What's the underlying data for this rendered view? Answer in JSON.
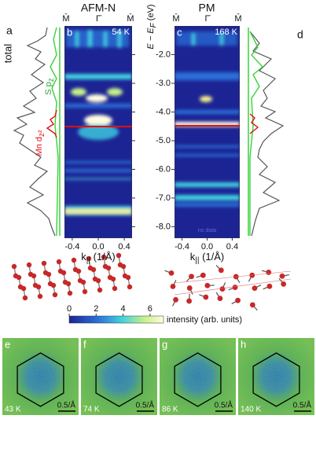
{
  "header": {
    "left_title": "AFM-N",
    "right_title": "PM"
  },
  "arpes": {
    "y_label": {
      "main": "E − E",
      "sub": "F",
      "unit": " (eV)"
    },
    "ylim": [
      -8.4,
      -1.0
    ],
    "yticks": [
      {
        "value": -2,
        "label": "-2.0"
      },
      {
        "value": -3,
        "label": "-3.0"
      },
      {
        "value": -4,
        "label": "-4.0"
      },
      {
        "value": -5,
        "label": "-5.0"
      },
      {
        "value": -6,
        "label": "-6.0"
      },
      {
        "value": -7,
        "label": "-7.0"
      },
      {
        "value": -8,
        "label": "-8.0"
      }
    ],
    "xlim": [
      -0.52,
      0.52
    ],
    "xticks": [
      -0.4,
      {
        "value": 0,
        "label": "0.0"
      },
      0.4
    ],
    "x_label": {
      "main": "k",
      "sub": "||",
      "unit": " (1/Å)"
    },
    "panels": [
      {
        "label": "b",
        "temperature": "54 K",
        "symmetry": [
          "M̄",
          "Γ̄",
          "M̄"
        ]
      },
      {
        "label": "c",
        "temperature": "168 K",
        "symmetry": [
          "M̄",
          "Γ̄",
          "M̄"
        ],
        "note": "no data"
      }
    ]
  },
  "dos": {
    "a": {
      "label": "a",
      "total": "total",
      "s": {
        "main": "S p",
        "sub": "z"
      },
      "mn": {
        "main": "Mn d",
        "sub": "z²"
      }
    },
    "d": {
      "label": "d"
    }
  },
  "colorbar": {
    "clim": [
      0,
      7
    ],
    "ticks": [
      0,
      2,
      4,
      6
    ],
    "label": "intensity (arb. units)"
  },
  "maps": [
    {
      "label": "e",
      "temperature": "43 K",
      "scale": "0.5/Å"
    },
    {
      "label": "f",
      "temperature": "74 K",
      "scale": "0.5/Å"
    },
    {
      "label": "g",
      "temperature": "86 K",
      "scale": "0.5/Å"
    },
    {
      "label": "h",
      "temperature": "140 K",
      "scale": "0.5/Å"
    }
  ]
}
